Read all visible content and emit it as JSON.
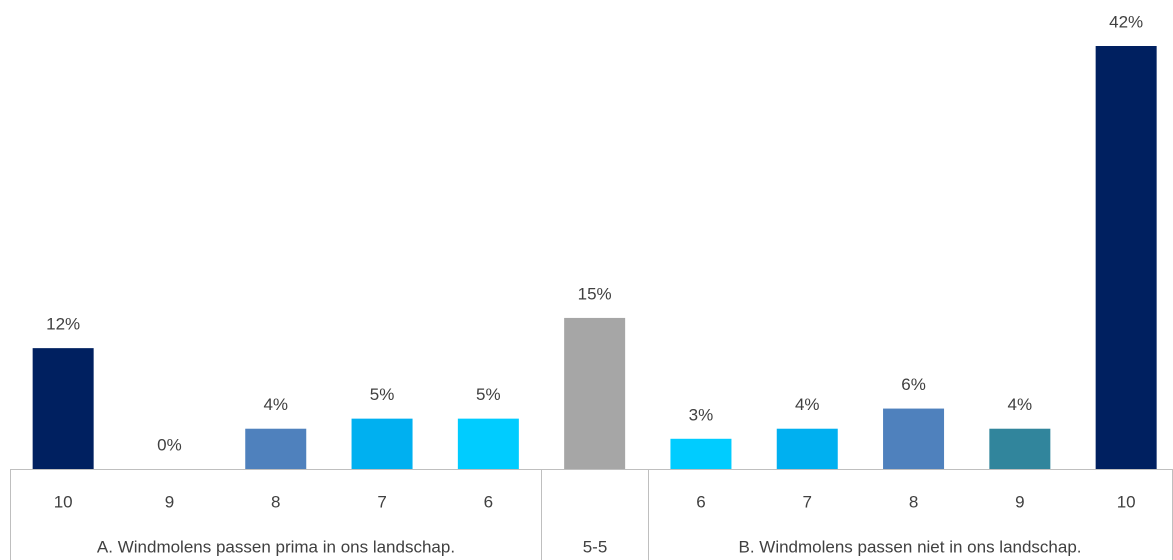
{
  "chart_data": {
    "type": "bar",
    "categories": [
      "10",
      "9",
      "8",
      "7",
      "6",
      null,
      "6",
      "7",
      "8",
      "9",
      "10"
    ],
    "groups": [
      "A. Windmolens passen prima in ons landschap.",
      "5-5",
      "B. Windmolens passen niet in ons landschap."
    ],
    "values": [
      12,
      0,
      4,
      5,
      5,
      15,
      3,
      4,
      6,
      4,
      42
    ],
    "value_labels": [
      "12%",
      "0%",
      "4%",
      "5%",
      "5%",
      "15%",
      "3%",
      "4%",
      "6%",
      "4%",
      "42%"
    ],
    "colors": [
      "#002060",
      "#002060",
      "#4f81bd",
      "#00b0f0",
      "#00ccff",
      "#a6a6a6",
      "#00ccff",
      "#00b0f0",
      "#4f81bd",
      "#31859c",
      "#002060"
    ],
    "ylim": [
      0,
      42
    ]
  }
}
